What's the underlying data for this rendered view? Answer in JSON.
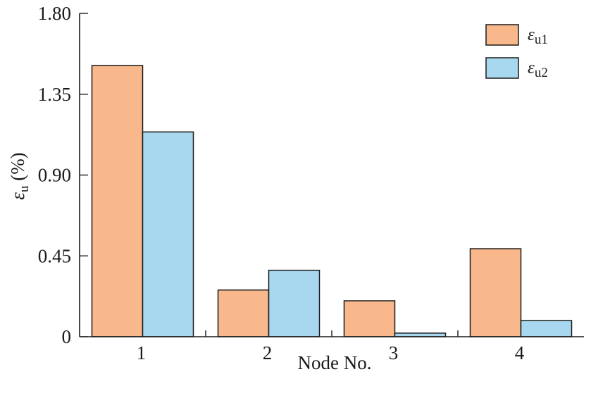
{
  "chart_data": {
    "type": "bar",
    "title": "",
    "categories": [
      "1",
      "2",
      "3",
      "4"
    ],
    "series": [
      {
        "name": "εu1",
        "name_symbol": "ε",
        "name_subscript": "u1",
        "color": "#f8b88b",
        "values": [
          1.51,
          0.26,
          0.2,
          0.49
        ]
      },
      {
        "name": "εu2",
        "name_symbol": "ε",
        "name_subscript": "u2",
        "color": "#a8d8f0",
        "values": [
          1.14,
          0.37,
          0.02,
          0.09
        ]
      }
    ],
    "xlabel": "Node No.",
    "ylabel": {
      "symbol": "ε",
      "subscript": "u",
      "suffix": " (%)"
    },
    "ylim": [
      0,
      1.8
    ],
    "yticks": [
      0,
      0.45,
      0.9,
      1.35,
      1.8
    ],
    "ytick_labels": [
      "0",
      "0.45",
      "0.90",
      "1.35",
      "1.80"
    ],
    "grid": false,
    "legend_position": "top-right"
  }
}
